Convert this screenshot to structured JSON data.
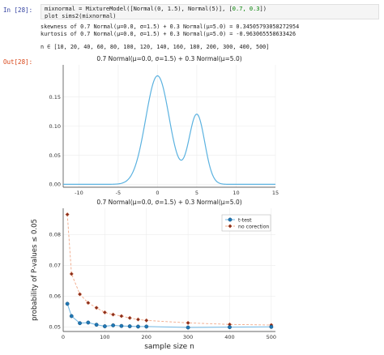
{
  "cell": {
    "in_prompt": "In [28]:",
    "out_prompt": "Out[28]:",
    "code_line1_pre": "mixnormal = MixtureModel([Normal(0, 1.5), Normal(5)], [",
    "code_line1_nums": "0.7, 0.3",
    "code_line1_post": "])",
    "code_line2": "plot_sims2(mixnormal)"
  },
  "stdout": {
    "line1": "skewness of 0.7 Normal(μ=0.0, σ=1.5) + 0.3 Normal(μ=5.0) = 0.34505793058272954",
    "line2": "kurtosis of 0.7 Normal(μ=0.0, σ=1.5) + 0.3 Normal(μ=5.0) = -0.963065558633426",
    "line3": "n ∈ [10, 20, 40, 60, 80, 100, 120, 140, 160, 180, 200, 300, 400, 500]"
  },
  "chart_data": [
    {
      "type": "line",
      "title": "0.7 Normal(μ=0.0, σ=1.5) + 0.3 Normal(μ=5.0)",
      "xlabel": "",
      "ylabel": "",
      "xlim": [
        -12,
        15
      ],
      "ylim": [
        -0.005,
        0.205
      ],
      "x_ticks": [
        "-10",
        "-5",
        "0",
        "5",
        "10",
        "15"
      ],
      "y_ticks": [
        "0.00",
        "0.05",
        "0.10",
        "0.15"
      ],
      "series": [
        {
          "color": "#5bb2e0",
          "function": "0.7*N(0,1.5) + 0.3*N(5,1)",
          "x_range": [
            -12,
            15
          ]
        }
      ],
      "grid": true,
      "legend": "none"
    },
    {
      "type": "line",
      "title": "0.7 Normal(μ=0.0, σ=1.5) + 0.3 Normal(μ=5.0)",
      "xlabel": "sample size n",
      "ylabel": "probability of P-values ≤ 0.05",
      "xlim": [
        0,
        510
      ],
      "ylim": [
        0.0485,
        0.0885
      ],
      "x_ticks": [
        "0",
        "100",
        "200",
        "300",
        "400",
        "500"
      ],
      "y_ticks": [
        "0.05",
        "0.06",
        "0.07",
        "0.08"
      ],
      "y_tick_values": [
        0.05,
        0.06,
        0.07,
        0.08
      ],
      "x_tick_values": [
        0,
        100,
        200,
        300,
        400,
        500
      ],
      "categories": [
        10,
        20,
        40,
        60,
        80,
        100,
        120,
        140,
        160,
        180,
        200,
        300,
        400,
        500
      ],
      "series": [
        {
          "name": "t-test",
          "color": "#1f77b4",
          "values": [
            0.0575,
            0.0535,
            0.0512,
            0.0514,
            0.0507,
            0.0502,
            0.0505,
            0.0503,
            0.0502,
            0.0501,
            0.0501,
            0.0498,
            0.0499,
            0.05
          ]
        },
        {
          "name": "no corection",
          "color": "#8b2f1c",
          "values": [
            0.0865,
            0.0672,
            0.0606,
            0.0578,
            0.0562,
            0.0547,
            0.054,
            0.0535,
            0.0529,
            0.0524,
            0.0521,
            0.0513,
            0.0508,
            0.0506
          ]
        }
      ],
      "grid": true,
      "legend": "top-right"
    }
  ]
}
